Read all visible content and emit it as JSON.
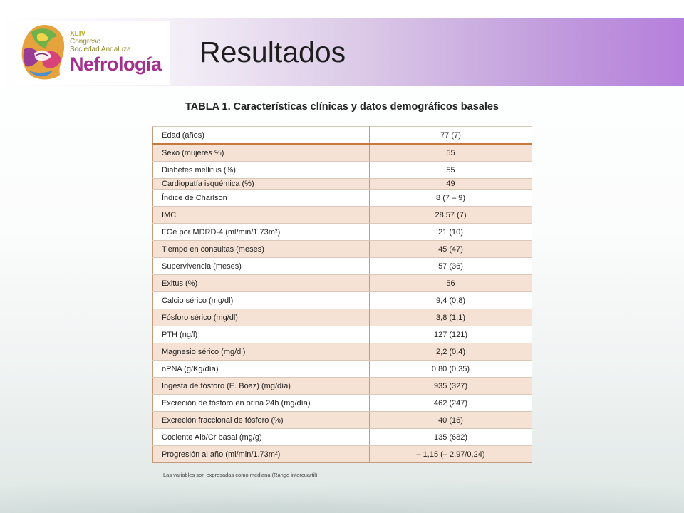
{
  "header": {
    "title": "Resultados",
    "logo": {
      "edition": "XLIV",
      "line1": "Congreso",
      "line2": "Sociedad Andaluza",
      "brand": "Nefrología",
      "tagline": "",
      "colors": {
        "brand": "#a2308e",
        "edition": "#b7b02a"
      }
    }
  },
  "table": {
    "title": "TABLA 1. Características clínicas y datos demográficos basales",
    "rows": [
      {
        "label": "Edad (años)",
        "value": "77 (7)"
      },
      {
        "label": "Sexo (mujeres %)",
        "value": "55"
      },
      {
        "label": "Diabetes mellitus (%)",
        "value": "55"
      },
      {
        "label": "Cardiopatía isquémica (%)",
        "value": "49"
      },
      {
        "label": "Índice de Charlson",
        "value": "8 (7 – 9)"
      },
      {
        "label": "IMC",
        "value": "28,57 (7)"
      },
      {
        "label": "FGe por MDRD-4 (ml/min/1.73m²)",
        "value": "21 (10)"
      },
      {
        "label": "Tiempo en consultas (meses)",
        "value": "45 (47)"
      },
      {
        "label": "Supervivencia (meses)",
        "value": "57 (36)"
      },
      {
        "label": "Exitus (%)",
        "value": "56"
      },
      {
        "label": "Calcio sérico (mg/dl)",
        "value": "9,4 (0,8)"
      },
      {
        "label": "Fósforo sérico (mg/dl)",
        "value": "3,8 (1,1)"
      },
      {
        "label": "PTH (ng/l)",
        "value": "127 (121)"
      },
      {
        "label": "Magnesio sérico (mg/dl)",
        "value": "2,2 (0,4)"
      },
      {
        "label": "nPNA (g/Kg/día)",
        "value": "0,80 (0,35)"
      },
      {
        "label": "Ingesta de fósforo (E. Boaz) (mg/día)",
        "value": "935 (327)"
      },
      {
        "label": "Excreción de fósforo en orina 24h (mg/día)",
        "value": "462 (247)"
      },
      {
        "label": "Excreción fraccional  de fósforo (%)",
        "value": "40 (16)"
      },
      {
        "label": "Cociente Alb/Cr basal (mg/g)",
        "value": "135 (682)"
      },
      {
        "label": "Progresión al año (ml/min/1.73m²)",
        "value": "– 1,15 (– 2,97/0,24)"
      }
    ],
    "footnote": "Las variables son expresadas como mediana (Rango intercuartil)"
  },
  "colors": {
    "header_gradient_end": "#b57fdc",
    "row_alt": "#f6e2d4",
    "row_border": "#c49a78",
    "header_row_border": "#c67a3c"
  }
}
